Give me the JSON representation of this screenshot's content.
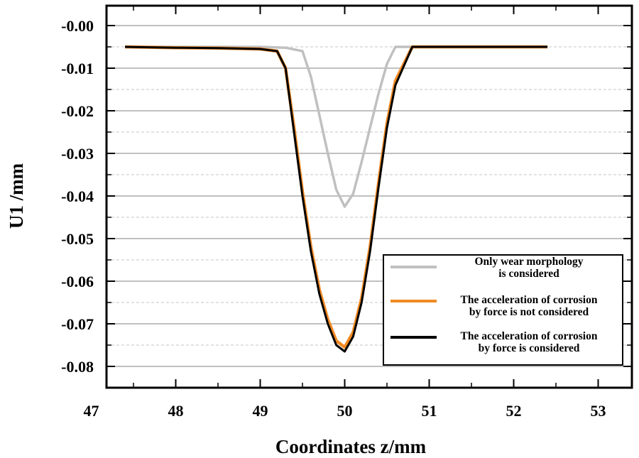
{
  "chart_data": {
    "type": "line",
    "xlabel": "Coordinates z/mm",
    "ylabel": "U1 /mm",
    "xlim": [
      47,
      53.5
    ],
    "ylim": [
      -0.084,
      0.005
    ],
    "x_ticks": [
      "47",
      "48",
      "49",
      "50",
      "51",
      "52",
      "53"
    ],
    "y_ticks": [
      "-0.00",
      "-0.01",
      "-0.02",
      "-0.03",
      "-0.04",
      "-0.05",
      "-0.06",
      "-0.07",
      "-0.08"
    ],
    "grid": {
      "major_y": "solid",
      "minor_y": "dashed",
      "x": false
    },
    "legend_position": "bottom-right",
    "series": [
      {
        "name": "Only wear morphology is considered",
        "legend_lines": [
          "Only wear morphology",
          "is considered"
        ],
        "color": "#c0c0c0",
        "x": [
          47.4,
          48.0,
          49.0,
          49.3,
          49.5,
          49.6,
          49.7,
          49.8,
          49.9,
          50.0,
          50.1,
          50.2,
          50.3,
          50.4,
          50.5,
          50.6,
          50.8,
          51.0,
          52.4
        ],
        "y": [
          -0.005,
          -0.005,
          -0.005,
          -0.0052,
          -0.006,
          -0.012,
          -0.021,
          -0.03,
          -0.0385,
          -0.0425,
          -0.0395,
          -0.032,
          -0.024,
          -0.016,
          -0.009,
          -0.005,
          -0.005,
          -0.005,
          -0.005
        ]
      },
      {
        "name": "The acceleration of corrosion by force is not considered",
        "legend_lines": [
          "The acceleration of corrosion",
          "by force is not considered"
        ],
        "color": "#f08a24",
        "x": [
          47.4,
          48.0,
          48.5,
          49.0,
          49.2,
          49.3,
          49.4,
          49.5,
          49.6,
          49.7,
          49.8,
          49.9,
          50.0,
          50.1,
          50.2,
          50.3,
          50.4,
          50.5,
          50.6,
          50.7,
          50.8,
          51.0,
          52.4
        ],
        "y": [
          -0.005,
          -0.0052,
          -0.0053,
          -0.0055,
          -0.006,
          -0.01,
          -0.024,
          -0.039,
          -0.052,
          -0.062,
          -0.069,
          -0.074,
          -0.0755,
          -0.072,
          -0.064,
          -0.052,
          -0.037,
          -0.023,
          -0.013,
          -0.009,
          -0.005,
          -0.005,
          -0.005
        ]
      },
      {
        "name": "The acceleration of corrosion by force is considered",
        "legend_lines": [
          "The acceleration of corrosion",
          "by force is considered"
        ],
        "color": "#000000",
        "x": [
          47.4,
          48.0,
          48.5,
          49.0,
          49.2,
          49.3,
          49.4,
          49.5,
          49.6,
          49.7,
          49.8,
          49.9,
          50.0,
          50.1,
          50.2,
          50.3,
          50.4,
          50.5,
          50.6,
          50.7,
          50.8,
          51.0,
          52.4
        ],
        "y": [
          -0.005,
          -0.0052,
          -0.0053,
          -0.0055,
          -0.006,
          -0.01,
          -0.025,
          -0.04,
          -0.053,
          -0.063,
          -0.07,
          -0.075,
          -0.0765,
          -0.073,
          -0.065,
          -0.053,
          -0.038,
          -0.024,
          -0.014,
          -0.0095,
          -0.005,
          -0.005,
          -0.005
        ]
      }
    ]
  }
}
